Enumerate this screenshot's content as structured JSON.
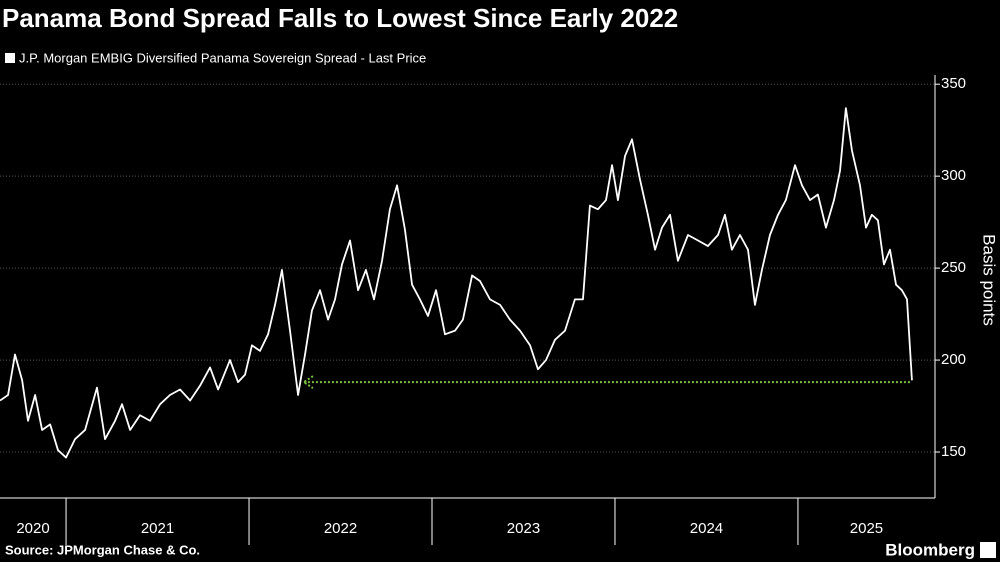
{
  "chart_data": {
    "type": "line",
    "title": "Panama Bond Spread Falls to Lowest Since Early 2022",
    "y_label": "Basis points",
    "source": "Source: JPMorgan Chase & Co.",
    "brand": "Bloomberg",
    "x": [
      2020.639,
      2020.683,
      2020.721,
      2020.76,
      2020.792,
      2020.831,
      2020.869,
      2020.913,
      2020.956,
      2021.0,
      2021.049,
      2021.104,
      2021.169,
      2021.213,
      2021.268,
      2021.306,
      2021.35,
      2021.404,
      2021.459,
      2021.514,
      2021.568,
      2021.623,
      2021.678,
      2021.732,
      2021.787,
      2021.831,
      2021.896,
      2021.94,
      2021.978,
      2022.016,
      2022.06,
      2022.104,
      2022.142,
      2022.18,
      2022.224,
      2022.268,
      2022.306,
      2022.344,
      2022.388,
      2022.432,
      2022.47,
      2022.508,
      2022.552,
      2022.596,
      2022.639,
      2022.683,
      2022.727,
      2022.77,
      2022.809,
      2022.852,
      2022.891,
      2022.934,
      2022.978,
      2023.022,
      2023.071,
      2023.126,
      2023.169,
      2023.219,
      2023.262,
      2023.317,
      2023.372,
      2023.426,
      2023.481,
      2023.536,
      2023.579,
      2023.623,
      2023.672,
      2023.727,
      2023.781,
      2023.825,
      2023.863,
      2023.907,
      2023.951,
      2023.984,
      2024.016,
      2024.055,
      2024.093,
      2024.137,
      2024.18,
      2024.219,
      2024.257,
      2024.301,
      2024.344,
      2024.399,
      2024.454,
      2024.508,
      2024.563,
      2024.601,
      2024.639,
      2024.683,
      2024.727,
      2024.765,
      2024.803,
      2024.847,
      2024.891,
      2024.934,
      2024.984,
      2025.022,
      2025.066,
      2025.109,
      2025.153,
      2025.197,
      2025.23,
      2025.262,
      2025.295,
      2025.339,
      2025.372,
      2025.404,
      2025.437,
      2025.47,
      2025.503,
      2025.536,
      2025.568,
      2025.596,
      2025.623
    ],
    "series": [
      {
        "name": "J.P. Morgan EMBIG Diversified Panama Sovereign Spread - Last Price",
        "color": "#ffffff",
        "values": [
          178,
          181,
          203,
          189,
          167,
          181,
          162,
          165,
          151,
          147,
          157,
          162,
          185,
          157,
          167,
          176,
          162,
          170,
          167,
          176,
          181,
          184,
          178,
          186,
          196,
          184,
          200,
          188,
          192,
          208,
          205,
          214,
          230,
          249,
          216,
          181,
          203,
          227,
          238,
          222,
          233,
          252,
          265,
          238,
          249,
          233,
          254,
          282,
          295,
          271,
          241,
          233,
          224,
          238,
          214,
          216,
          222,
          246,
          243,
          233,
          230,
          222,
          216,
          208,
          195,
          200,
          211,
          216,
          233,
          233,
          284,
          282,
          287,
          306,
          287,
          311,
          320,
          298,
          279,
          260,
          272,
          279,
          254,
          268,
          265,
          262,
          268,
          279,
          260,
          268,
          260,
          230,
          249,
          268,
          279,
          287,
          306,
          295,
          287,
          290,
          272,
          287,
          303,
          337,
          314,
          295,
          272,
          279,
          276,
          252,
          260,
          241,
          238,
          233,
          189
        ]
      }
    ],
    "annotation_line": {
      "value": 188,
      "from": 2022.3,
      "to": 2025.623,
      "color": "#7bc043"
    },
    "xlim": [
      2020.639,
      2025.749
    ],
    "xticks": [
      2020,
      2021,
      2022,
      2023,
      2024,
      2025
    ],
    "ylim": [
      125,
      355
    ],
    "yticks": [
      150,
      200,
      250,
      300,
      350
    ],
    "grid": true
  }
}
